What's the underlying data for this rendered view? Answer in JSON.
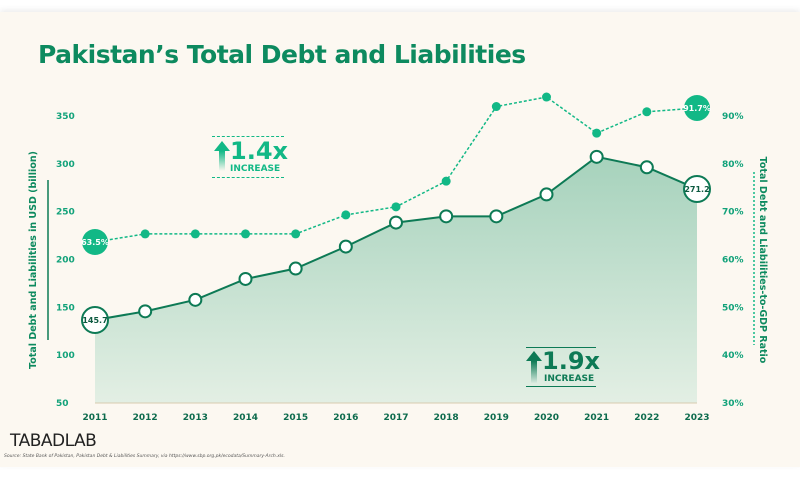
{
  "title": "Pakistan’s Total Debt and Liabilities",
  "logo": "TABADLAB",
  "source": "Source: State Bank of Pakistan, Pakistan Debt & Liabilities Summary, via https://www.sbp.org.pk/ecodata/Summary-Arch.xls.",
  "annotations": {
    "ratio_increase": {
      "value": "1.4x",
      "label": "INCREASE"
    },
    "debt_increase": {
      "value": "1.9x",
      "label": "INCREASE"
    }
  },
  "colors": {
    "accent": "#12b886",
    "dark": "#0d7a55",
    "area": "#a9d3bf",
    "background": "#fcf8f1"
  },
  "chart_data": {
    "type": "area+line",
    "title": "Pakistan’s Total Debt and Liabilities",
    "categories": [
      "2011",
      "2012",
      "2013",
      "2014",
      "2015",
      "2016",
      "2017",
      "2018",
      "2019",
      "2020",
      "2021",
      "2022",
      "2023"
    ],
    "ylabel": "Total Debt and Liabilities in USD (billion)",
    "ylim": [
      50,
      350
    ],
    "yticks": [
      "50",
      "100",
      "150",
      "200",
      "250",
      "300",
      "350"
    ],
    "y2label": "Total Debt and Liabilities-to-GDP Ratio",
    "y2lim": [
      30,
      90
    ],
    "y2ticks": [
      "30%",
      "40%",
      "50%",
      "60%",
      "70%",
      "80%",
      "90%"
    ],
    "grid": false,
    "series": [
      {
        "axis": "left",
        "style": "solid area",
        "values": [
          145.7,
          154,
          165,
          185,
          195,
          216,
          239,
          245,
          245,
          266,
          302,
          292,
          271.2
        ],
        "labels": {
          "first": "145.7",
          "last": "271.2"
        }
      },
      {
        "axis": "right",
        "style": "dashed",
        "values": [
          63.5,
          65.2,
          65.2,
          65.2,
          65.2,
          69.2,
          70.9,
          76.3,
          92.0,
          94.0,
          86.4,
          90.9,
          91.7
        ],
        "labels": {
          "first": "63.5%",
          "last": "91.7%"
        }
      }
    ]
  }
}
